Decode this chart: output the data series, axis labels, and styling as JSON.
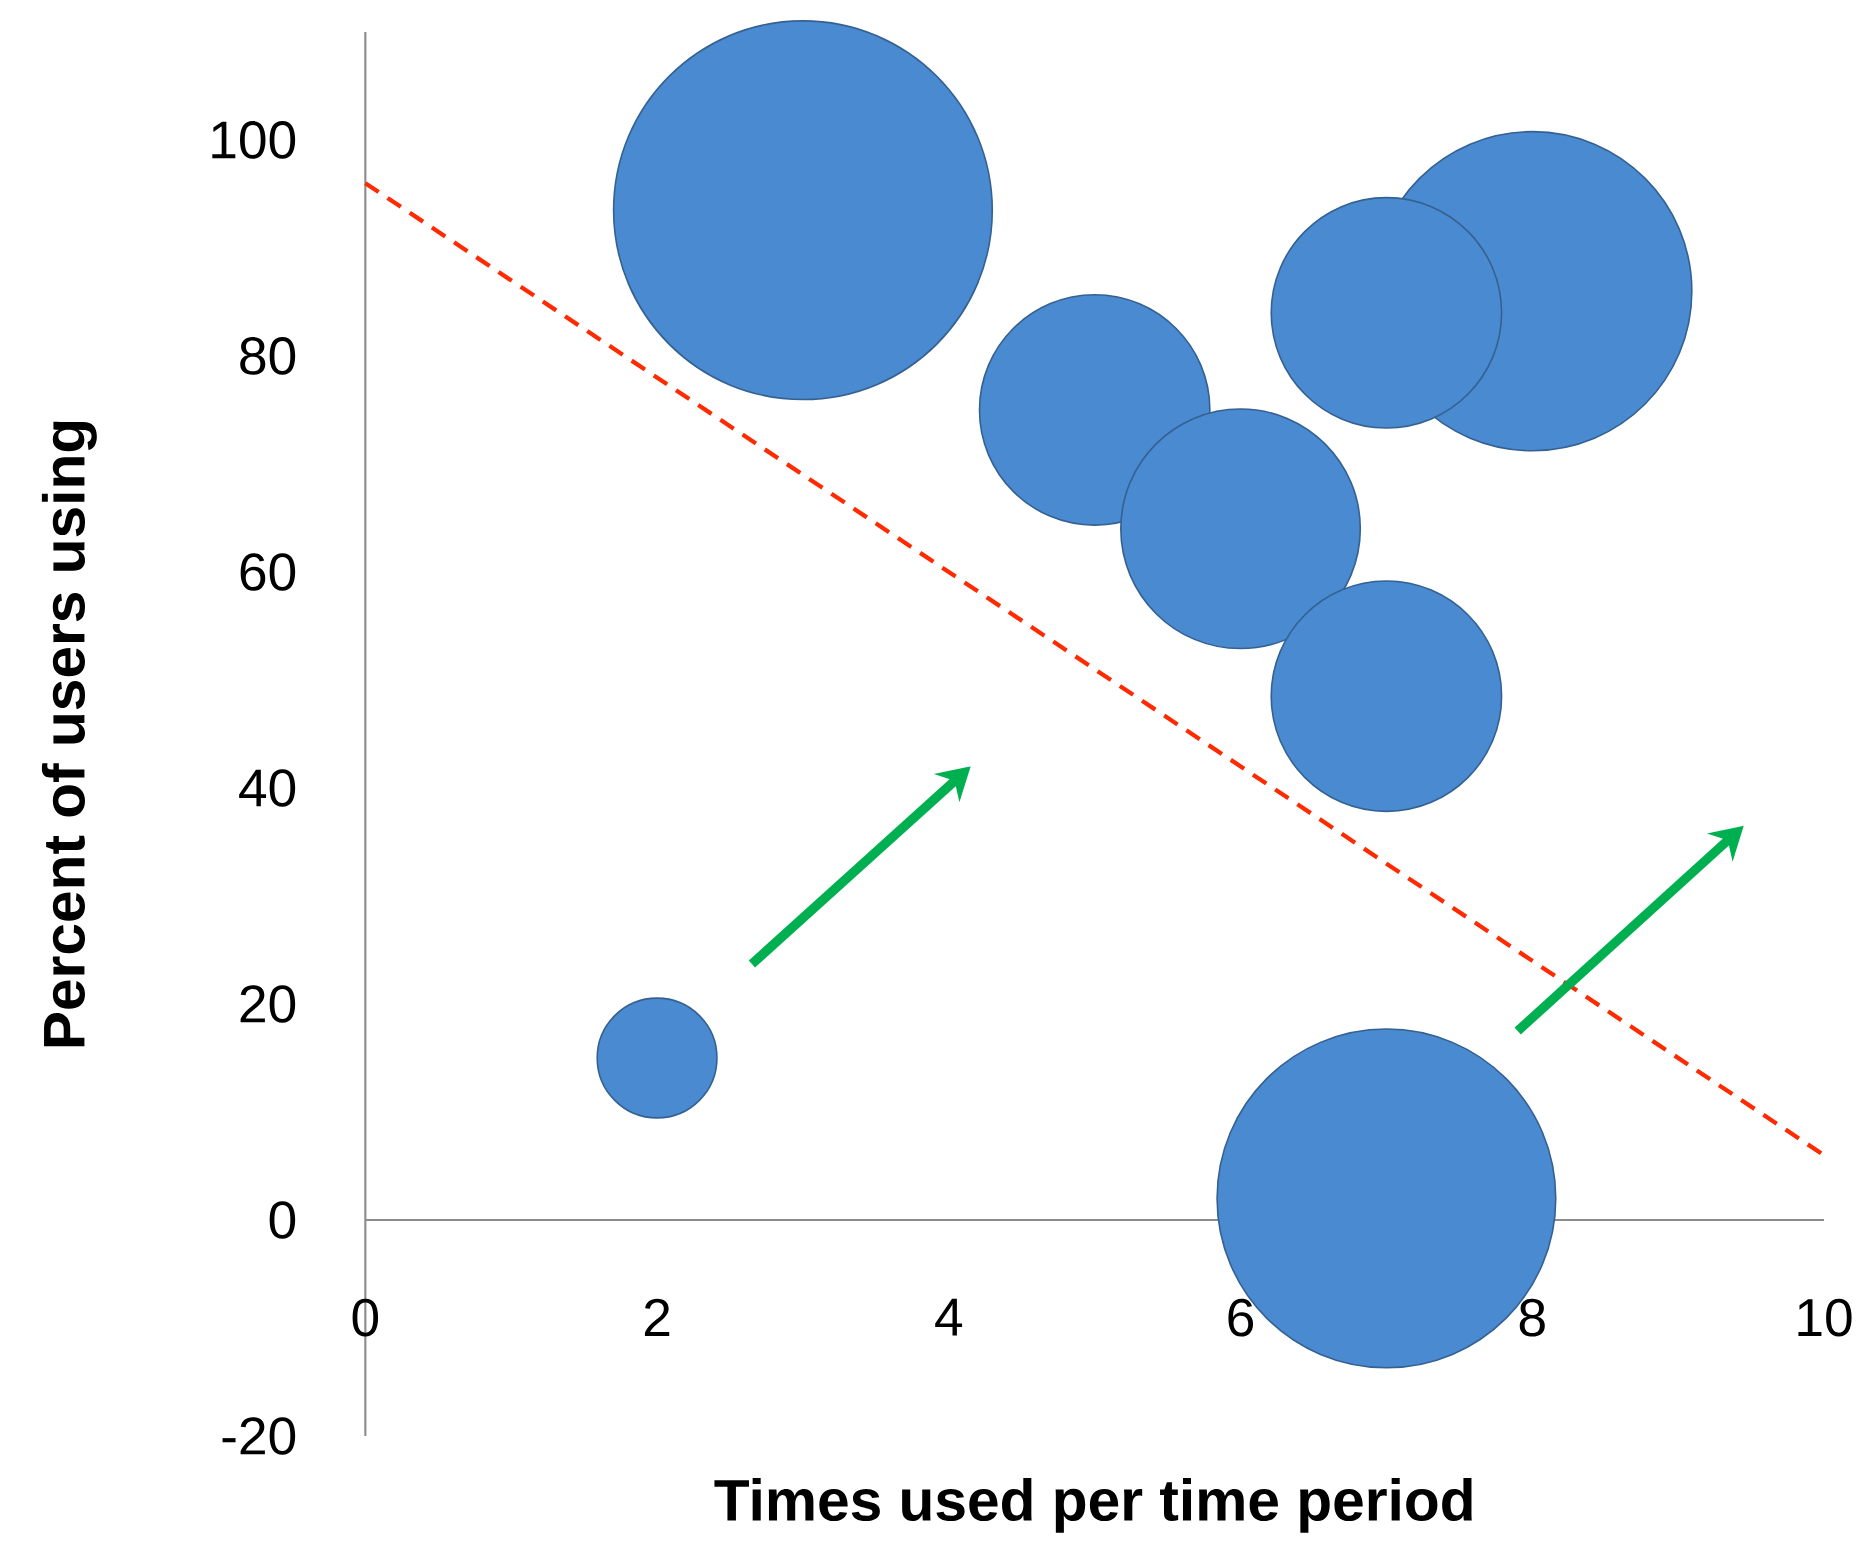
{
  "chart_data": {
    "type": "bubble",
    "xlabel": "Times used per time period",
    "ylabel": "Percent of users using",
    "xlim": [
      0,
      10
    ],
    "ylim": [
      -20,
      110
    ],
    "xticks": [
      0,
      2,
      4,
      6,
      8,
      10
    ],
    "yticks": [
      -20,
      0,
      20,
      40,
      60,
      80,
      100
    ],
    "marker": "circle",
    "series": [
      {
        "color": "#4a8ad0",
        "x": [
          3,
          5,
          6,
          8,
          7,
          7,
          2,
          7
        ],
        "values": [
          93.5,
          75,
          64,
          86,
          84,
          48.5,
          15,
          2
        ],
        "sizes": [
          1,
          0.37,
          0.4,
          0.71,
          0.37,
          0.37,
          0.1,
          0.8
        ]
      },
      {
        "type": "line",
        "color": "#ff2a00",
        "line_style": "dashed",
        "marker": "none",
        "x": [
          0,
          10
        ],
        "values": [
          96,
          6
        ]
      }
    ]
  }
}
